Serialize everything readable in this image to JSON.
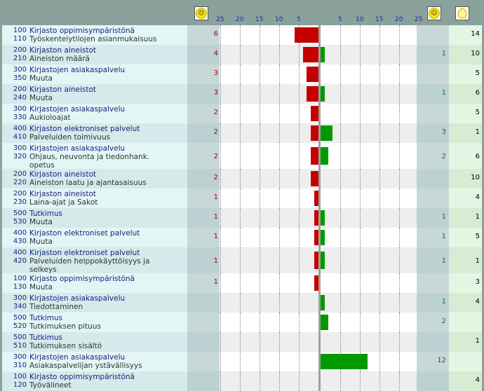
{
  "header": {
    "unhappy_icon": "frowning-smiley-icon",
    "happy_icon": "smiling-smiley-icon",
    "idea_icon": "lightbulb-icon",
    "neg_ticks": [
      "25",
      "20",
      "15",
      "10",
      "5"
    ],
    "pos_ticks": [
      "5",
      "10",
      "15",
      "20",
      "25"
    ]
  },
  "colors": {
    "negative": "#c40000",
    "positive": "#009a00"
  },
  "chart_data": {
    "type": "bar",
    "axis_range": [
      -25,
      25
    ],
    "grid": true,
    "rows": [
      {
        "c1": "100",
        "l1": "Kirjasto oppimisympäristönä",
        "c2": "110",
        "l2": [
          "Työskentelytilojen asianmukaisuus"
        ],
        "neg": 6,
        "pos": 0,
        "neg_label": "6",
        "pos_label": "",
        "total": "14"
      },
      {
        "c1": "200",
        "l1": "Kirjaston aineistot",
        "c2": "210",
        "l2": [
          "Aineiston määrä"
        ],
        "neg": 4,
        "pos": 1,
        "neg_label": "4",
        "pos_label": "1",
        "total": "10"
      },
      {
        "c1": "300",
        "l1": "Kirjastojen asiakaspalvelu",
        "c2": "350",
        "l2": [
          "Muuta"
        ],
        "neg": 3,
        "pos": 0,
        "neg_label": "3",
        "pos_label": "",
        "total": "5"
      },
      {
        "c1": "200",
        "l1": "Kirjaston aineistot",
        "c2": "240",
        "l2": [
          "Muuta"
        ],
        "neg": 3,
        "pos": 1,
        "neg_label": "3",
        "pos_label": "1",
        "total": "6"
      },
      {
        "c1": "300",
        "l1": "Kirjastojen asiakaspalvelu",
        "c2": "330",
        "l2": [
          "Aukioloajat"
        ],
        "neg": 2,
        "pos": 0,
        "neg_label": "2",
        "pos_label": "",
        "total": "5"
      },
      {
        "c1": "400",
        "l1": "Kirjaston elektroniset palvelut",
        "c2": "410",
        "l2": [
          "Palveluiden toimivuus"
        ],
        "neg": 2,
        "pos": 3,
        "neg_label": "2",
        "pos_label": "3",
        "total": "1"
      },
      {
        "c1": "300",
        "l1": "Kirjastojen asiakaspalvelu",
        "c2": "320",
        "l2": [
          "Ohjaus, neuvonta ja tiedonhank.",
          "opetus"
        ],
        "neg": 2,
        "pos": 2,
        "neg_label": "2",
        "pos_label": "2",
        "total": "6"
      },
      {
        "c1": "200",
        "l1": "Kirjaston aineistot",
        "c2": "220",
        "l2": [
          "Aineiston laatu ja ajantasaisuus"
        ],
        "neg": 2,
        "pos": 0,
        "neg_label": "2",
        "pos_label": "",
        "total": "10"
      },
      {
        "c1": "200",
        "l1": "Kirjaston aineistot",
        "c2": "230",
        "l2": [
          "Laina-ajat ja Sakot"
        ],
        "neg": 1,
        "pos": 0,
        "neg_label": "1",
        "pos_label": "",
        "total": "4"
      },
      {
        "c1": "500",
        "l1": "Tutkimus",
        "c2": "530",
        "l2": [
          "Muuta"
        ],
        "neg": 1,
        "pos": 1,
        "neg_label": "1",
        "pos_label": "1",
        "total": "1"
      },
      {
        "c1": "400",
        "l1": "Kirjaston elektroniset palvelut",
        "c2": "430",
        "l2": [
          "Muuta"
        ],
        "neg": 1,
        "pos": 1,
        "neg_label": "1",
        "pos_label": "1",
        "total": "5"
      },
      {
        "c1": "400",
        "l1": "Kirjaston elektroniset palvelut",
        "c2": "420",
        "l2": [
          "Palveluiden helppokäyttöisyys ja",
          "selkeys"
        ],
        "neg": 1,
        "pos": 1,
        "neg_label": "1",
        "pos_label": "1",
        "total": "1"
      },
      {
        "c1": "100",
        "l1": "Kirjasto oppimisympäristönä",
        "c2": "130",
        "l2": [
          "Muuta"
        ],
        "neg": 1,
        "pos": 0,
        "neg_label": "1",
        "pos_label": "",
        "total": "3"
      },
      {
        "c1": "300",
        "l1": "Kirjastojen asiakaspalvelu",
        "c2": "340",
        "l2": [
          "Tiedottaminen"
        ],
        "neg": 0,
        "pos": 1,
        "neg_label": "",
        "pos_label": "1",
        "total": "4"
      },
      {
        "c1": "500",
        "l1": "Tutkimus",
        "c2": "520",
        "l2": [
          "Tutkimuksen pituus"
        ],
        "neg": 0,
        "pos": 2,
        "neg_label": "",
        "pos_label": "2",
        "total": ""
      },
      {
        "c1": "500",
        "l1": "Tutkimus",
        "c2": "510",
        "l2": [
          "Tutkimuksen sisältö"
        ],
        "neg": 0,
        "pos": 0,
        "neg_label": "",
        "pos_label": "",
        "total": "1"
      },
      {
        "c1": "300",
        "l1": "Kirjastojen asiakaspalvelu",
        "c2": "310",
        "l2": [
          "Asiakaspalvelijan ystävällisyys"
        ],
        "neg": 0,
        "pos": 12,
        "neg_label": "",
        "pos_label": "12",
        "total": ""
      },
      {
        "c1": "100",
        "l1": "Kirjasto oppimisympäristönä",
        "c2": "120",
        "l2": [
          "Työvälineet"
        ],
        "neg": 0,
        "pos": 0,
        "neg_label": "",
        "pos_label": "",
        "total": "4"
      }
    ]
  }
}
